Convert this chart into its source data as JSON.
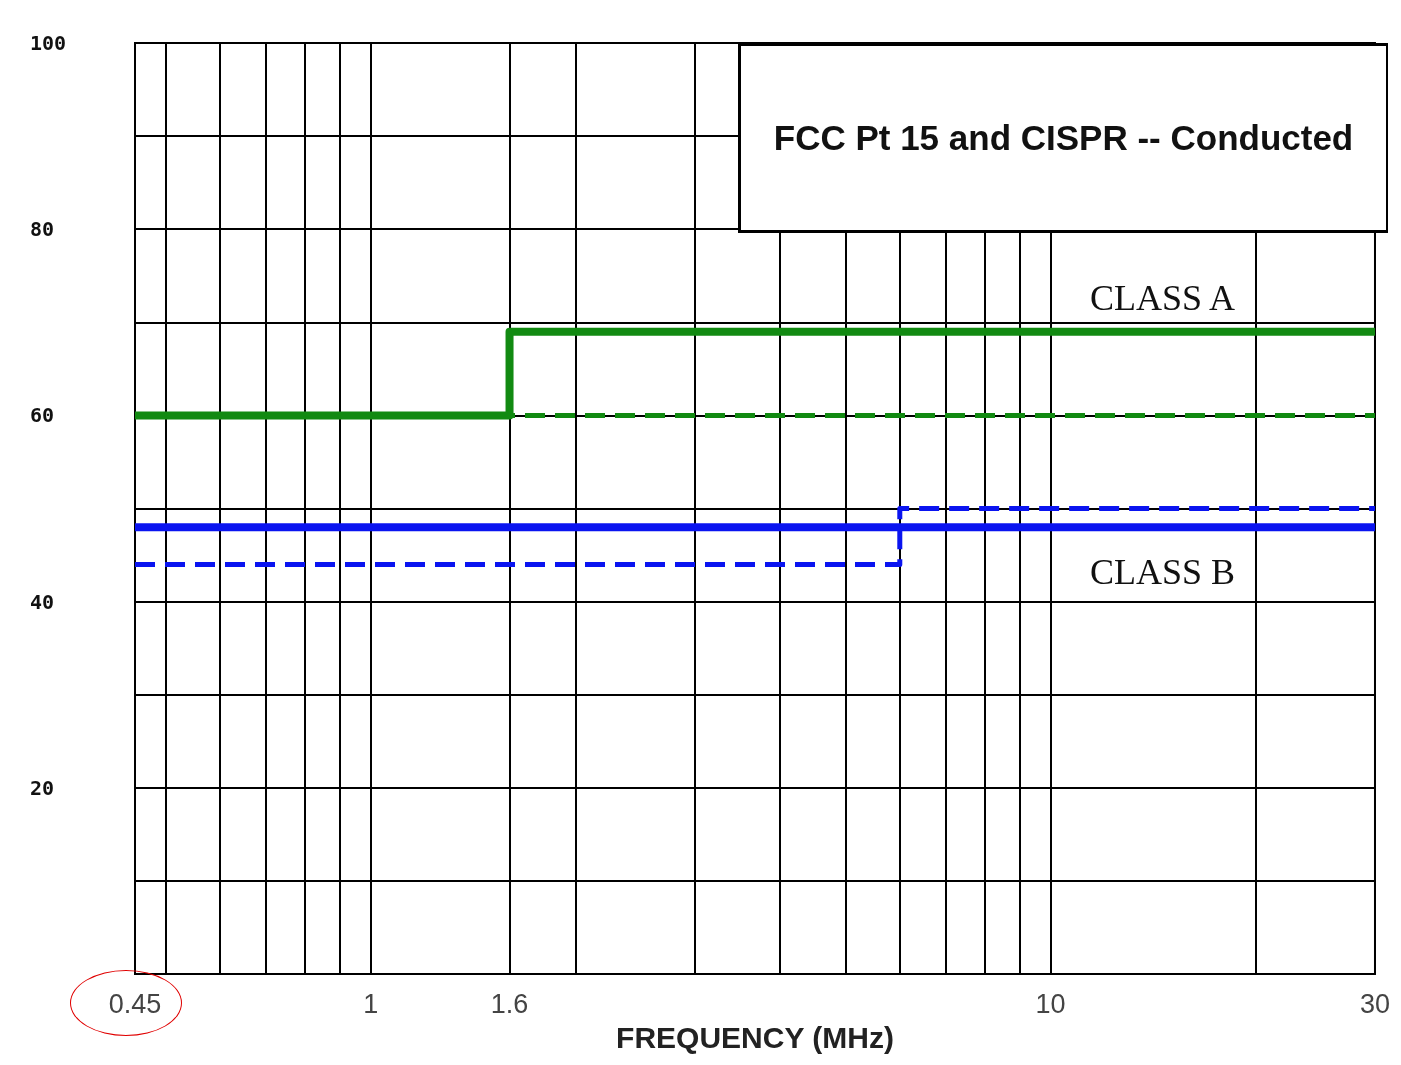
{
  "chart_data": {
    "type": "step",
    "title": "FCC Pt 15 and CISPR -- Conducted",
    "xlabel": "FREQUENCY (MHz)",
    "log": "x",
    "grid": true,
    "marker": "none",
    "xlim": [
      0.45,
      30
    ],
    "xticks": [
      0.45,
      {
        "value": 0.5,
        "label": null
      },
      {
        "value": 0.6,
        "label": null
      },
      {
        "value": 0.7,
        "label": null
      },
      {
        "value": 0.8,
        "label": null
      },
      {
        "value": 0.9,
        "label": null
      },
      1,
      1.6,
      {
        "value": 2,
        "label": null
      },
      {
        "value": 3,
        "label": null
      },
      {
        "value": 4,
        "label": null
      },
      {
        "value": 5,
        "label": null
      },
      {
        "value": 6,
        "label": null
      },
      {
        "value": 7,
        "label": null
      },
      {
        "value": 8,
        "label": null
      },
      {
        "value": 9,
        "label": null
      },
      10,
      {
        "value": 20,
        "label": null
      },
      30
    ],
    "ylim": [
      0,
      100
    ],
    "yticks": [
      {
        "value": 10,
        "label": null
      },
      20,
      {
        "value": 30,
        "label": null
      },
      40,
      {
        "value": 50,
        "label": null
      },
      60,
      {
        "value": 70,
        "label": null
      },
      80,
      {
        "value": 90,
        "label": null
      },
      100
    ],
    "series": [
      {
        "color": "#128a12",
        "line_style": "dashed",
        "x": [
          0.45,
          30
        ],
        "values": [
          60,
          60
        ]
      },
      {
        "color": "#128a12",
        "line_style": "solid",
        "x": [
          0.45,
          1.6,
          30
        ],
        "values": [
          60,
          69,
          69
        ]
      },
      {
        "color": "#0a14f0",
        "line_style": "dashed",
        "x": [
          0.45,
          6,
          30
        ],
        "values": [
          44,
          50,
          50
        ]
      },
      {
        "color": "#0a14f0",
        "line_style": "solid",
        "x": [
          0.45,
          30
        ],
        "values": [
          48,
          48
        ]
      }
    ],
    "annotations": [
      "CLASS A",
      "CLASS B"
    ]
  }
}
